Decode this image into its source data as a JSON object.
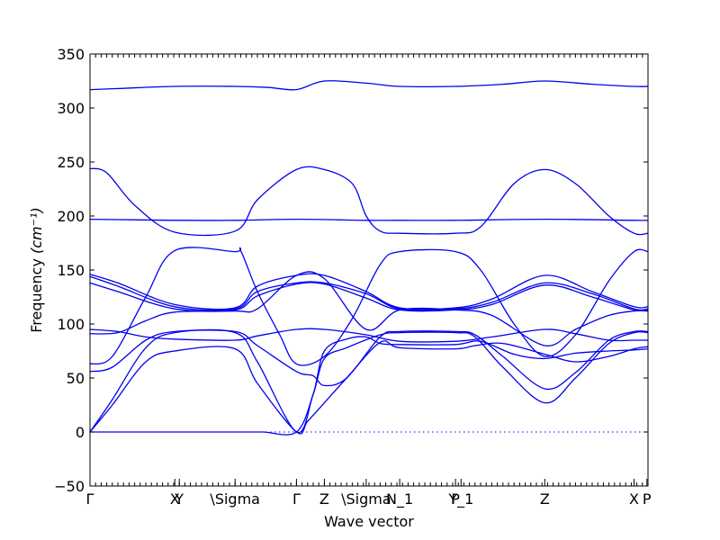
{
  "chart_data": {
    "type": "line",
    "xlabel": "Wave vector",
    "ylabel": "Frequency",
    "ylabel_unit": "(cm⁻¹)",
    "ylim": [
      -50,
      350
    ],
    "yticks": [
      -50,
      0,
      50,
      100,
      150,
      200,
      250,
      300,
      350
    ],
    "xlim": [
      0,
      1
    ],
    "high_symmetry_points": [
      {
        "label": "Γ",
        "x": 0.0
      },
      {
        "label": "X",
        "x": 0.152
      },
      {
        "label": "Y",
        "x": 0.16
      },
      {
        "label": "\\Sigma",
        "x": 0.26
      },
      {
        "label": "Γ",
        "x": 0.37
      },
      {
        "label": "Z",
        "x": 0.42
      },
      {
        "label": "\\Sigma",
        "x": 0.495
      },
      {
        "label": "N_1",
        "x": 0.555
      },
      {
        "label": "P",
        "x": 0.655
      },
      {
        "label": "Y_1",
        "x": 0.665
      },
      {
        "label": "Z",
        "x": 0.815
      },
      {
        "label": "X",
        "x": 0.975
      },
      {
        "label": "P",
        "x": 0.998
      }
    ],
    "zero_line": true,
    "series_color": "#0000ee",
    "series": [
      {
        "x": [
          0,
          0.05,
          0.152,
          0.26,
          0.32,
          0.37,
          0.42,
          0.495,
          0.555,
          0.655,
          0.74,
          0.815,
          0.9,
          0.975,
          1.0
        ],
        "y": [
          317,
          318,
          320,
          320,
          319,
          317,
          325,
          323,
          320,
          320,
          322,
          325,
          322,
          320,
          320
        ]
      },
      {
        "x": [
          0,
          0.03,
          0.08,
          0.152,
          0.26,
          0.3,
          0.37,
          0.42,
          0.47,
          0.495,
          0.52,
          0.555,
          0.655,
          0.7,
          0.76,
          0.815,
          0.87,
          0.93,
          0.975,
          1.0
        ],
        "y": [
          244,
          240,
          210,
          185,
          186,
          215,
          243,
          243,
          230,
          200,
          186,
          184,
          184,
          190,
          230,
          243,
          230,
          200,
          184,
          184
        ]
      },
      {
        "x": [
          0,
          0.152,
          0.26,
          0.37,
          0.495,
          0.555,
          0.655,
          0.815,
          0.975,
          1.0
        ],
        "y": [
          197,
          196,
          196,
          197,
          196,
          196,
          196,
          197,
          196,
          196
        ]
      },
      {
        "x": [
          0,
          0.04,
          0.1,
          0.152,
          0.26,
          0.27,
          0.3,
          0.34,
          0.37,
          0.42,
          0.47,
          0.52,
          0.555,
          0.655,
          0.7,
          0.76,
          0.815,
          0.87,
          0.93,
          0.975,
          1.0
        ],
        "y": [
          63,
          70,
          125,
          168,
          167,
          168,
          130,
          90,
          63,
          70,
          105,
          155,
          167,
          167,
          150,
          100,
          70,
          90,
          140,
          167,
          167
        ]
      },
      {
        "x": [
          0,
          0.05,
          0.152,
          0.26,
          0.3,
          0.37,
          0.42,
          0.495,
          0.555,
          0.655,
          0.72,
          0.815,
          0.9,
          0.975,
          1.0
        ],
        "y": [
          146,
          138,
          118,
          115,
          135,
          145,
          145,
          130,
          115,
          115,
          123,
          145,
          130,
          116,
          116
        ]
      },
      {
        "x": [
          0,
          0.05,
          0.152,
          0.26,
          0.3,
          0.37,
          0.42,
          0.495,
          0.555,
          0.655,
          0.72,
          0.815,
          0.9,
          0.975,
          1.0
        ],
        "y": [
          144,
          135,
          116,
          114,
          130,
          138,
          138,
          128,
          114,
          114,
          120,
          138,
          128,
          114,
          114
        ]
      },
      {
        "x": [
          0,
          0.05,
          0.152,
          0.26,
          0.3,
          0.37,
          0.42,
          0.495,
          0.555,
          0.655,
          0.72,
          0.815,
          0.9,
          0.975,
          1.0
        ],
        "y": [
          138,
          130,
          114,
          113,
          126,
          137,
          137,
          124,
          113,
          113,
          118,
          136,
          125,
          113,
          113
        ]
      },
      {
        "x": [
          0,
          0.05,
          0.1,
          0.152,
          0.26,
          0.3,
          0.37,
          0.42,
          0.495,
          0.555,
          0.655,
          0.72,
          0.815,
          0.87,
          0.93,
          0.975,
          1.0
        ],
        "y": [
          91,
          92,
          103,
          111,
          112,
          114,
          145,
          142,
          95,
          113,
          113,
          108,
          80,
          95,
          108,
          112,
          112
        ]
      },
      {
        "x": [
          0,
          0.05,
          0.1,
          0.152,
          0.26,
          0.3,
          0.37,
          0.42,
          0.495,
          0.555,
          0.655,
          0.72,
          0.815,
          0.87,
          0.93,
          0.975,
          1.0
        ],
        "y": [
          95,
          93,
          88,
          86,
          85,
          89,
          95,
          95,
          90,
          84,
          84,
          88,
          95,
          91,
          85,
          85,
          85
        ]
      },
      {
        "x": [
          0,
          0.04,
          0.1,
          0.152,
          0.26,
          0.3,
          0.37,
          0.4,
          0.42,
          0.46,
          0.52,
          0.555,
          0.655,
          0.69,
          0.74,
          0.815,
          0.87,
          0.93,
          0.975,
          1.0
        ],
        "y": [
          56,
          60,
          85,
          93,
          93,
          80,
          56,
          52,
          43,
          50,
          88,
          93,
          93,
          90,
          70,
          40,
          55,
          85,
          93,
          93
        ]
      },
      {
        "x": [
          0,
          0.04,
          0.1,
          0.152,
          0.26,
          0.3,
          0.37,
          0.4,
          0.42,
          0.46,
          0.52,
          0.555,
          0.655,
          0.69,
          0.74,
          0.815,
          0.87,
          0.93,
          0.975,
          1.0
        ],
        "y": [
          0,
          30,
          78,
          92,
          92,
          65,
          0,
          35,
          68,
          78,
          90,
          92,
          92,
          88,
          60,
          27,
          50,
          82,
          92,
          92
        ]
      },
      {
        "x": [
          0,
          0.04,
          0.1,
          0.152,
          0.26,
          0.3,
          0.37,
          0.39,
          0.42,
          0.46,
          0.52,
          0.555,
          0.655,
          0.69,
          0.74,
          0.815,
          0.87,
          0.93,
          0.975,
          1.0
        ],
        "y": [
          0,
          25,
          65,
          75,
          77,
          45,
          0,
          10,
          27,
          50,
          83,
          78,
          77,
          80,
          82,
          72,
          65,
          70,
          77,
          79
        ]
      },
      {
        "x": [
          0,
          0.152,
          0.26,
          0.31,
          0.37,
          0.4,
          0.42,
          0.46,
          0.495,
          0.52,
          0.555,
          0.655,
          0.7,
          0.76,
          0.815,
          0.87,
          0.93,
          0.975,
          1.0
        ],
        "y": [
          0,
          0,
          0,
          0,
          0,
          35,
          75,
          86,
          88,
          82,
          81,
          81,
          84,
          72,
          68,
          73,
          75,
          76,
          77
        ]
      }
    ]
  }
}
